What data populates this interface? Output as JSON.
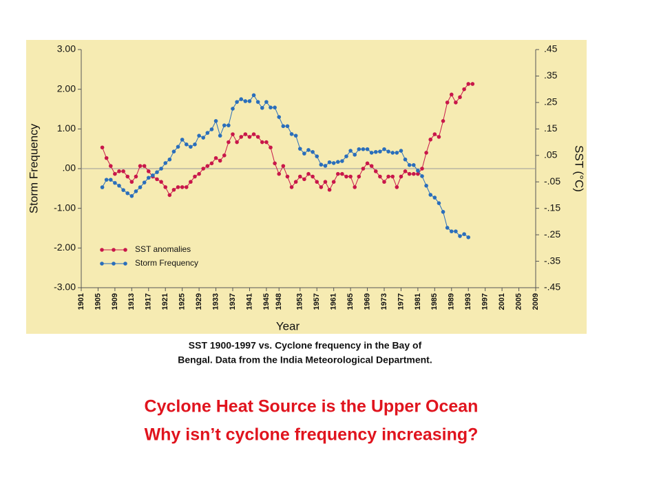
{
  "chart_data": {
    "type": "line",
    "xlabel": "Year",
    "ylabel": "Storm Frequency",
    "y2label": "SST (°C)",
    "xlim": [
      1901,
      2009
    ],
    "xticks": [
      1901,
      1905,
      1909,
      1913,
      1917,
      1921,
      1925,
      1929,
      1933,
      1937,
      1941,
      1945,
      1948,
      1953,
      1957,
      1961,
      1965,
      1969,
      1973,
      1977,
      1981,
      1985,
      1989,
      1993,
      1997,
      2001,
      2005,
      2009
    ],
    "ylim": [
      -3,
      3
    ],
    "yticks": [
      {
        "value": 3,
        "label": "3.00"
      },
      {
        "value": 2,
        "label": "2.00"
      },
      {
        "value": 1,
        "label": "1.00"
      },
      {
        "value": 0,
        "label": ".00"
      },
      {
        "value": -1,
        "label": "-1.00"
      },
      {
        "value": -2,
        "label": "-2.00"
      },
      {
        "value": -3,
        "label": "-3.00"
      }
    ],
    "y2lim": [
      -0.45,
      0.45
    ],
    "y2ticks": [
      {
        "value": 0.45,
        "label": ".45"
      },
      {
        "value": 0.35,
        "label": ".35"
      },
      {
        "value": 0.25,
        "label": ".25"
      },
      {
        "value": 0.15,
        "label": ".15"
      },
      {
        "value": 0.05,
        "label": ".05"
      },
      {
        "value": -0.05,
        "label": "-.05"
      },
      {
        "value": -0.15,
        "label": "-.15"
      },
      {
        "value": -0.25,
        "label": "-.25"
      },
      {
        "value": -0.35,
        "label": "-.35"
      },
      {
        "value": -0.45,
        "label": "-.45"
      }
    ],
    "zero_line": true,
    "x": [
      1906,
      1907,
      1908,
      1909,
      1910,
      1911,
      1912,
      1913,
      1914,
      1915,
      1916,
      1917,
      1918,
      1919,
      1920,
      1921,
      1922,
      1923,
      1924,
      1925,
      1926,
      1927,
      1928,
      1929,
      1930,
      1931,
      1932,
      1933,
      1934,
      1935,
      1936,
      1937,
      1938,
      1939,
      1940,
      1941,
      1942,
      1943,
      1944,
      1945,
      1946,
      1947,
      1948,
      1949,
      1950,
      1951,
      1952,
      1953,
      1954,
      1955,
      1956,
      1957,
      1958,
      1959,
      1960,
      1961,
      1962,
      1963,
      1964,
      1965,
      1966,
      1967,
      1968,
      1969,
      1970,
      1971,
      1972,
      1973,
      1974,
      1975,
      1976,
      1977,
      1978,
      1979,
      1980,
      1981,
      1982,
      1983,
      1984,
      1985,
      1986,
      1987,
      1988,
      1989,
      1990,
      1991,
      1992,
      1993,
      1994
    ],
    "series": [
      {
        "name": "SST  anomalies",
        "color": "#c8174a",
        "axis": "y2",
        "values": [
          0.08,
          0.04,
          0.01,
          -0.02,
          -0.01,
          -0.01,
          -0.03,
          -0.05,
          -0.03,
          0.01,
          0.01,
          -0.01,
          -0.03,
          -0.04,
          -0.05,
          -0.07,
          -0.1,
          -0.08,
          -0.07,
          -0.07,
          -0.07,
          -0.05,
          -0.03,
          -0.02,
          0,
          0.01,
          0.02,
          0.04,
          0.03,
          0.05,
          0.1,
          0.13,
          0.1,
          0.12,
          0.13,
          0.12,
          0.13,
          0.12,
          0.1,
          0.1,
          0.08,
          0.02,
          -0.02,
          0.01,
          -0.03,
          -0.07,
          -0.05,
          -0.03,
          -0.04,
          -0.02,
          -0.03,
          -0.05,
          -0.07,
          -0.05,
          -0.08,
          -0.05,
          -0.02,
          -0.02,
          -0.03,
          -0.03,
          -0.07,
          -0.03,
          0,
          0.02,
          0.01,
          -0.01,
          -0.03,
          -0.05,
          -0.03,
          -0.03,
          -0.07,
          -0.03,
          -0.01,
          -0.02,
          -0.02,
          -0.02,
          0,
          0.06,
          0.11,
          0.13,
          0.12,
          0.18,
          0.25,
          0.28,
          0.25,
          0.27,
          0.3,
          0.32,
          0.32
        ]
      },
      {
        "name": "Storm Frequency",
        "color": "#2a6ebb",
        "values": [
          -0.47,
          -0.28,
          -0.28,
          -0.36,
          -0.43,
          -0.54,
          -0.62,
          -0.69,
          -0.57,
          -0.47,
          -0.35,
          -0.23,
          -0.17,
          -0.09,
          0,
          0.14,
          0.23,
          0.43,
          0.55,
          0.73,
          0.61,
          0.55,
          0.61,
          0.83,
          0.78,
          0.9,
          0.99,
          1.2,
          0.83,
          1.09,
          1.09,
          1.51,
          1.68,
          1.75,
          1.7,
          1.7,
          1.85,
          1.68,
          1.53,
          1.68,
          1.54,
          1.54,
          1.3,
          1.07,
          1.07,
          0.87,
          0.83,
          0.5,
          0.38,
          0.47,
          0.42,
          0.31,
          0.1,
          0.07,
          0.16,
          0.14,
          0.17,
          0.19,
          0.31,
          0.45,
          0.35,
          0.49,
          0.49,
          0.49,
          0.4,
          0.42,
          0.43,
          0.49,
          0.43,
          0.4,
          0.4,
          0.45,
          0.23,
          0.09,
          0.09,
          -0.05,
          -0.19,
          -0.43,
          -0.66,
          -0.73,
          -0.87,
          -1.09,
          -1.49,
          -1.58,
          -1.58,
          -1.7,
          -1.65,
          -1.73,
          null
        ]
      }
    ]
  },
  "caption": [
    "SST 1900-1997 vs. Cyclone frequency in the Bay of",
    "Bengal.  Data from the India  Meteorological Department."
  ],
  "headline": [
    "Cyclone Heat Source is the Upper Ocean",
    "Why isn’t cyclone frequency increasing?"
  ]
}
